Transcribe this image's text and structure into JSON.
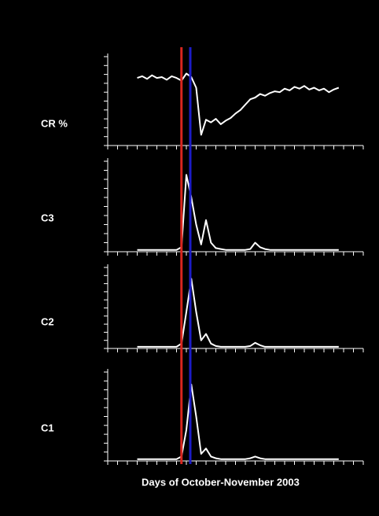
{
  "chart_data": [
    {
      "type": "line",
      "y_label": "CR %",
      "xlim": [
        0,
        26
      ],
      "xticks": [
        0,
        1,
        2,
        3,
        4,
        5,
        6,
        7,
        8,
        9,
        10,
        11,
        12,
        13,
        14,
        15,
        16,
        17,
        18,
        19,
        20,
        21,
        22,
        23,
        24,
        25,
        26
      ],
      "ylim": [
        0,
        10
      ],
      "yticks": [
        0,
        1,
        2,
        3,
        4,
        5,
        6,
        7,
        8,
        9,
        10
      ],
      "x": [
        3,
        3.5,
        4,
        4.5,
        5,
        5.5,
        6,
        6.5,
        7,
        7.5,
        8,
        8.5,
        9,
        9.5,
        10,
        10.5,
        11,
        11.5,
        12,
        12.5,
        13,
        13.5,
        14,
        14.5,
        15,
        15.5,
        16,
        16.5,
        17,
        17.5,
        18,
        18.5,
        19,
        19.5,
        20,
        20.5,
        21,
        21.5,
        22,
        22.5,
        23,
        23.5
      ],
      "series": [
        {
          "color": "#ffffff",
          "values": [
            7.6,
            7.8,
            7.5,
            7.9,
            7.6,
            7.7,
            7.4,
            7.8,
            7.6,
            7.3,
            8.1,
            7.7,
            6.5,
            1.2,
            2.9,
            2.6,
            3.0,
            2.4,
            2.8,
            3.1,
            3.6,
            4.0,
            4.6,
            5.2,
            5.4,
            5.8,
            5.6,
            5.9,
            6.1,
            6.0,
            6.4,
            6.2,
            6.6,
            6.4,
            6.7,
            6.3,
            6.5,
            6.2,
            6.4,
            6.0,
            6.3,
            6.5
          ]
        }
      ]
    },
    {
      "type": "line",
      "y_label": "C3",
      "xlim": [
        0,
        26
      ],
      "xticks": [
        0,
        1,
        2,
        3,
        4,
        5,
        6,
        7,
        8,
        9,
        10,
        11,
        12,
        13,
        14,
        15,
        16,
        17,
        18,
        19,
        20,
        21,
        22,
        23,
        24,
        25,
        26
      ],
      "ylim": [
        0,
        10
      ],
      "yticks": [
        0,
        1,
        2,
        3,
        4,
        5,
        6,
        7,
        8,
        9,
        10
      ],
      "x": [
        3,
        3.5,
        4,
        4.5,
        5,
        5.5,
        6,
        6.5,
        7,
        7.5,
        8,
        8.5,
        9,
        9.5,
        10,
        10.5,
        11,
        11.5,
        12,
        12.5,
        13,
        13.5,
        14,
        14.5,
        15,
        15.5,
        16,
        16.5,
        17,
        17.5,
        18,
        18.5,
        19,
        19.5,
        20,
        20.5,
        21,
        21.5,
        22,
        22.5,
        23,
        23.5
      ],
      "series": [
        {
          "color": "#ffffff",
          "values": [
            0.2,
            0.2,
            0.2,
            0.2,
            0.2,
            0.2,
            0.2,
            0.2,
            0.2,
            0.5,
            8.5,
            6.0,
            3.0,
            0.8,
            3.5,
            1.0,
            0.4,
            0.3,
            0.2,
            0.2,
            0.2,
            0.2,
            0.2,
            0.3,
            1.0,
            0.5,
            0.3,
            0.2,
            0.2,
            0.2,
            0.2,
            0.2,
            0.2,
            0.2,
            0.2,
            0.2,
            0.2,
            0.2,
            0.2,
            0.2,
            0.2,
            0.2
          ]
        }
      ]
    },
    {
      "type": "line",
      "y_label": "C2",
      "xlim": [
        0,
        26
      ],
      "xticks": [
        0,
        1,
        2,
        3,
        4,
        5,
        6,
        7,
        8,
        9,
        10,
        11,
        12,
        13,
        14,
        15,
        16,
        17,
        18,
        19,
        20,
        21,
        22,
        23,
        24,
        25,
        26
      ],
      "ylim": [
        0,
        10
      ],
      "yticks": [
        0,
        1,
        2,
        3,
        4,
        5,
        6,
        7,
        8,
        9,
        10
      ],
      "x": [
        3,
        3.5,
        4,
        4.5,
        5,
        5.5,
        6,
        6.5,
        7,
        7.5,
        8,
        8.5,
        9,
        9.5,
        10,
        10.5,
        11,
        11.5,
        12,
        12.5,
        13,
        13.5,
        14,
        14.5,
        15,
        15.5,
        16,
        16.5,
        17,
        17.5,
        18,
        18.5,
        19,
        19.5,
        20,
        20.5,
        21,
        21.5,
        22,
        22.5,
        23,
        23.5
      ],
      "series": [
        {
          "color": "#ffffff",
          "values": [
            0.2,
            0.2,
            0.2,
            0.2,
            0.2,
            0.2,
            0.2,
            0.2,
            0.2,
            0.6,
            4.5,
            8.6,
            4.5,
            1.0,
            1.8,
            0.6,
            0.3,
            0.2,
            0.2,
            0.2,
            0.2,
            0.2,
            0.2,
            0.3,
            0.7,
            0.4,
            0.2,
            0.2,
            0.2,
            0.2,
            0.2,
            0.2,
            0.2,
            0.2,
            0.2,
            0.2,
            0.2,
            0.2,
            0.2,
            0.2,
            0.2,
            0.2
          ]
        }
      ]
    },
    {
      "type": "line",
      "y_label": "C1",
      "x_label": "Days of October-November 2003",
      "xlim": [
        0,
        26
      ],
      "xticks": [
        0,
        1,
        2,
        3,
        4,
        5,
        6,
        7,
        8,
        9,
        10,
        11,
        12,
        13,
        14,
        15,
        16,
        17,
        18,
        19,
        20,
        21,
        22,
        23,
        24,
        25,
        26
      ],
      "ylim": [
        0,
        10
      ],
      "yticks": [
        0,
        1,
        2,
        3,
        4,
        5,
        6,
        7,
        8,
        9,
        10
      ],
      "x": [
        3,
        3.5,
        4,
        4.5,
        5,
        5.5,
        6,
        6.5,
        7,
        7.5,
        8,
        8.5,
        9,
        9.5,
        10,
        10.5,
        11,
        11.5,
        12,
        12.5,
        13,
        13.5,
        14,
        14.5,
        15,
        15.5,
        16,
        16.5,
        17,
        17.5,
        18,
        18.5,
        19,
        19.5,
        20,
        20.5,
        21,
        21.5,
        22,
        22.5,
        23,
        23.5
      ],
      "series": [
        {
          "color": "#ffffff",
          "values": [
            0.2,
            0.2,
            0.2,
            0.2,
            0.2,
            0.2,
            0.2,
            0.2,
            0.2,
            0.5,
            3.5,
            8.6,
            5.0,
            0.8,
            1.4,
            0.5,
            0.3,
            0.2,
            0.2,
            0.2,
            0.2,
            0.2,
            0.2,
            0.3,
            0.5,
            0.3,
            0.2,
            0.2,
            0.2,
            0.2,
            0.2,
            0.2,
            0.2,
            0.2,
            0.2,
            0.2,
            0.2,
            0.2,
            0.2,
            0.2,
            0.2,
            0.2
          ]
        }
      ]
    }
  ],
  "events": [
    {
      "x": 7.5,
      "color": "#d8261e"
    },
    {
      "x": 8.4,
      "color": "#1c1cc8"
    }
  ]
}
